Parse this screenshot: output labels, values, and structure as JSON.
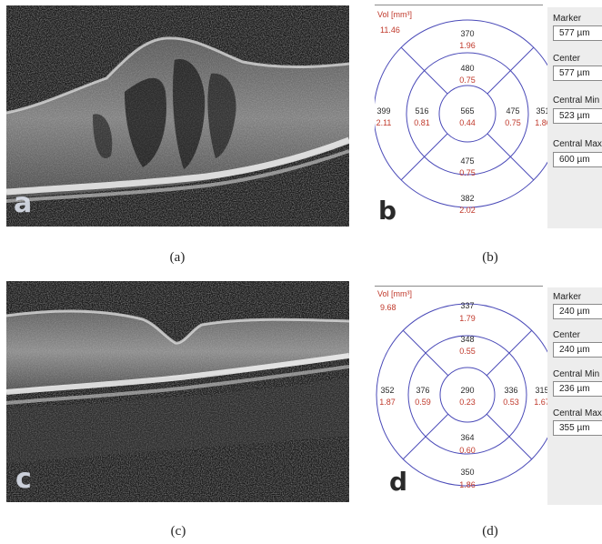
{
  "panels": [
    {
      "letter": "a",
      "caption": "(a)"
    },
    {
      "letter": "b",
      "caption": "(b)",
      "vol_label": "Vol [mm³]",
      "vol_value": "11.46",
      "center": {
        "thickness": "565",
        "volume": "0.44"
      },
      "inner": {
        "top": {
          "thickness": "480",
          "volume": "0.75"
        },
        "bottom": {
          "thickness": "475",
          "volume": "0.75"
        },
        "left": {
          "thickness": "516",
          "volume": "0.81"
        },
        "right": {
          "thickness": "475",
          "volume": "0.75"
        }
      },
      "outer": {
        "top": {
          "thickness": "370",
          "volume": "1.96"
        },
        "bottom": {
          "thickness": "382",
          "volume": "2.02"
        },
        "left": {
          "thickness": "399",
          "volume": "2.11"
        },
        "right": {
          "thickness": "351",
          "volume": "1.86"
        }
      },
      "sidebar": [
        {
          "label": "Marker",
          "value": "577 µm"
        },
        {
          "label": "Center",
          "value": "577 µm"
        },
        {
          "label": "Central Min",
          "value": "523 µm"
        },
        {
          "label": "Central Max",
          "value": "600 µm"
        }
      ]
    },
    {
      "letter": "c",
      "caption": "(c)"
    },
    {
      "letter": "d",
      "caption": "(d)",
      "vol_label": "Vol [mm³]",
      "vol_value": "9.68",
      "center": {
        "thickness": "290",
        "volume": "0.23"
      },
      "inner": {
        "top": {
          "thickness": "348",
          "volume": "0.55"
        },
        "bottom": {
          "thickness": "364",
          "volume": "0.60"
        },
        "left": {
          "thickness": "376",
          "volume": "0.59"
        },
        "right": {
          "thickness": "336",
          "volume": "0.53"
        }
      },
      "outer": {
        "top": {
          "thickness": "337",
          "volume": "1.79"
        },
        "bottom": {
          "thickness": "350",
          "volume": "1.86"
        },
        "left": {
          "thickness": "352",
          "volume": "1.87"
        },
        "right": {
          "thickness": "315",
          "volume": "1.67"
        }
      },
      "sidebar": [
        {
          "label": "Marker",
          "value": "240 µm"
        },
        {
          "label": "Center",
          "value": "240 µm"
        },
        {
          "label": "Central Min",
          "value": "236 µm"
        },
        {
          "label": "Central Max",
          "value": "355 µm"
        }
      ]
    }
  ],
  "colors": {
    "ring_stroke": "#4a4ab8",
    "thickness_text": "#2a2a2a",
    "volume_text": "#c0392b"
  }
}
